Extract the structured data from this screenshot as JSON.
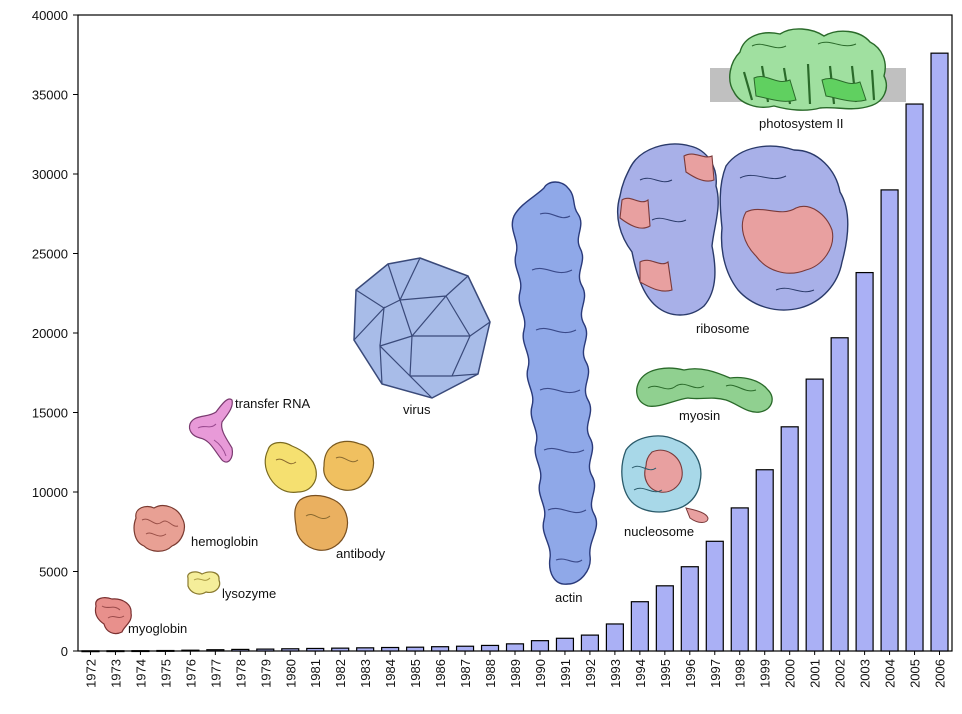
{
  "chart_data": {
    "type": "bar",
    "title": "",
    "xlabel": "",
    "ylabel": "",
    "ylim": [
      0,
      40000
    ],
    "yticks": [
      0,
      5000,
      10000,
      15000,
      20000,
      25000,
      30000,
      35000,
      40000
    ],
    "grid": false,
    "bar_color": "#aab0f5",
    "categories": [
      "1972",
      "1973",
      "1974",
      "1975",
      "1976",
      "1977",
      "1978",
      "1979",
      "1980",
      "1981",
      "1982",
      "1983",
      "1984",
      "1985",
      "1986",
      "1987",
      "1988",
      "1989",
      "1990",
      "1991",
      "1992",
      "1993",
      "1994",
      "1995",
      "1996",
      "1997",
      "1998",
      "1999",
      "2000",
      "2001",
      "2002",
      "2003",
      "2004",
      "2005",
      "2006"
    ],
    "values": [
      10,
      15,
      20,
      30,
      50,
      80,
      100,
      120,
      140,
      160,
      180,
      200,
      220,
      240,
      270,
      300,
      350,
      450,
      650,
      800,
      1000,
      1700,
      3100,
      4100,
      5300,
      6900,
      9000,
      11400,
      14100,
      17100,
      19700,
      23800,
      29000,
      34400,
      37600
    ]
  },
  "molecules": [
    {
      "label": "myoglobin",
      "icon": "myoglobin-icon",
      "color": "#e8908c"
    },
    {
      "label": "lysozyme",
      "icon": "lysozyme-icon",
      "color": "#f0e68c"
    },
    {
      "label": "hemoglobin",
      "icon": "hemoglobin-icon",
      "color": "#e8a094"
    },
    {
      "label": "transfer RNA",
      "icon": "transfer-rna-icon",
      "color": "#e89ad8"
    },
    {
      "label": "antibody",
      "icon": "antibody-icon",
      "color": "#f0c060"
    },
    {
      "label": "virus",
      "icon": "virus-icon",
      "color": "#a8bce8"
    },
    {
      "label": "actin",
      "icon": "actin-icon",
      "color": "#8fa8e8"
    },
    {
      "label": "nucleosome",
      "icon": "nucleosome-icon",
      "color": "#a8d8e8"
    },
    {
      "label": "myosin",
      "icon": "myosin-icon",
      "color": "#90d090"
    },
    {
      "label": "ribosome",
      "icon": "ribosome-icon",
      "color": "#a8b0e8"
    },
    {
      "label": "photosystem II",
      "icon": "photosystem-ii-icon",
      "color": "#90e090"
    }
  ]
}
